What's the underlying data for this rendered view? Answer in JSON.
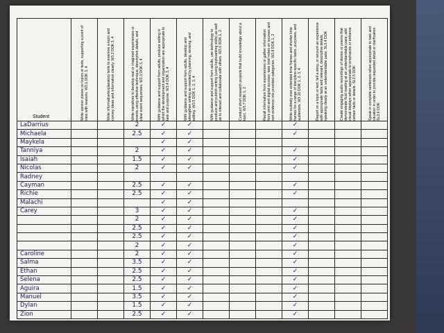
{
  "table": {
    "headers": [
      "Student",
      "Write opinion pieces on topics or texts, supporting a point of view with reasons. W3.1 DOK 3, 4",
      "Write informative/explanatory texts to examine a topic and convey ideas and information clearly. W3.2 DOK 3, 4",
      "Write narratives to develop real or imagined experiences or events using effective technique, descriptive details, and clear event sequences. W3.3 DOK 3, 4",
      "With guidance and support from adults, produce writing in which the development and organization are appropriate to task and purpose. W3.4 DOK 3, 4",
      "With guidance and support from adults, develop and strengthen writing as needed by planning, revising, and editing. W3.5 DOK 1, 2, 3, 4",
      "With guidance and support from adults, use technology to produce and publish writing (using keyboarding skills) as well as to interact and collaborate with others. W3.6 DOK 1, 2",
      "Conduct short research projects that build knowledge about a topic. W3.7 DOK 1, 2",
      "Recall information from experiences or gather information from print and digital sources; take brief notes on sources and sort evidence into provided categories. W3.8 DOK 1, 2",
      "Write routinely over extended time frames and shorter time frames for a range of discipline-specific tasks, purposes, and audiences. W3.10 DOK 1, 2, 3, 4",
      "Report on a topic or text, tell a story, or recount an experience with appropriate facts and relevant, descriptive details, speaking clearly at an understandable pace. SL3.4 DOK",
      "Create engaging audio recordings of stories or poems that demonstrate fluid reading at an understandable pace; add visual displays when appropriate to emphasize or enhance certain facts or details. SL3.5 DOK",
      "Speak in complete sentences when appropriate to task and situation in order to provide requested detail or clarification. SL3.6 DOK"
    ],
    "rows": [
      {
        "name": "LaDarrius",
        "cells": [
          null,
          null,
          2,
          "✓",
          "✓",
          null,
          null,
          null,
          "✓",
          null,
          null,
          null
        ]
      },
      {
        "name": "Michaela",
        "cells": [
          null,
          null,
          2.5,
          "✓",
          "✓",
          null,
          null,
          null,
          "✓",
          null,
          null,
          null
        ]
      },
      {
        "name": "Maykela",
        "cells": [
          null,
          null,
          null,
          "✓",
          "✓",
          null,
          null,
          null,
          null,
          null,
          null,
          null
        ]
      },
      {
        "name": "Tanniya",
        "cells": [
          null,
          null,
          2,
          "✓",
          "✓",
          null,
          null,
          null,
          "✓",
          null,
          null,
          null
        ]
      },
      {
        "name": "Isaiah",
        "cells": [
          null,
          null,
          1.5,
          "✓",
          "✓",
          null,
          null,
          null,
          "✓",
          null,
          null,
          null
        ]
      },
      {
        "name": "Nicolas",
        "cells": [
          null,
          null,
          2,
          "✓",
          "✓",
          null,
          null,
          null,
          "✓",
          null,
          null,
          null
        ]
      },
      {
        "name": "Radney",
        "cells": [
          null,
          null,
          null,
          null,
          null,
          null,
          null,
          null,
          null,
          null,
          null,
          null
        ]
      },
      {
        "name": "Cayman",
        "cells": [
          null,
          null,
          2.5,
          "✓",
          "✓",
          null,
          null,
          null,
          "✓",
          null,
          null,
          null
        ]
      },
      {
        "name": "Richie",
        "cells": [
          null,
          null,
          2.5,
          "✓",
          "✓",
          null,
          null,
          null,
          "✓",
          null,
          null,
          null
        ]
      },
      {
        "name": "Malachi",
        "cells": [
          null,
          null,
          null,
          "✓",
          "✓",
          null,
          null,
          null,
          null,
          null,
          null,
          null
        ]
      },
      {
        "name": "Carey",
        "cells": [
          null,
          null,
          3,
          "✓",
          "✓",
          null,
          null,
          null,
          "✓",
          null,
          null,
          null
        ]
      },
      {
        "cells": [
          null,
          null,
          2,
          "✓",
          "✓",
          null,
          null,
          null,
          "✓",
          null,
          null,
          null
        ]
      },
      {
        "cells": [
          null,
          null,
          2.5,
          "✓",
          "✓",
          null,
          null,
          null,
          "✓",
          null,
          null,
          null
        ]
      },
      {
        "cells": [
          null,
          null,
          2.5,
          "✓",
          "✓",
          null,
          null,
          null,
          "✓",
          null,
          null,
          null
        ]
      },
      {
        "cells": [
          null,
          null,
          2,
          "✓",
          "✓",
          null,
          null,
          null,
          "✓",
          null,
          null,
          null
        ]
      },
      {
        "name": "Caroline",
        "cells": [
          null,
          null,
          2,
          "✓",
          "✓",
          null,
          null,
          null,
          "✓",
          null,
          null,
          null
        ]
      },
      {
        "name": "Salma",
        "cells": [
          null,
          null,
          3.5,
          "✓",
          "✓",
          null,
          null,
          null,
          "✓",
          null,
          null,
          null
        ]
      },
      {
        "name": "Ethan",
        "cells": [
          null,
          null,
          2.5,
          "✓",
          "✓",
          null,
          null,
          null,
          "✓",
          null,
          null,
          null
        ]
      },
      {
        "name": "Selena",
        "cells": [
          null,
          null,
          2.5,
          "✓",
          "✓",
          null,
          null,
          null,
          "✓",
          null,
          null,
          null
        ]
      },
      {
        "name": "Aguira",
        "cells": [
          null,
          null,
          1.5,
          "✓",
          "✓",
          null,
          null,
          null,
          "✓",
          null,
          null,
          null
        ]
      },
      {
        "name": "Manuel",
        "cells": [
          null,
          null,
          3.5,
          "✓",
          "✓",
          null,
          null,
          null,
          "✓",
          null,
          null,
          null
        ]
      },
      {
        "name": "Dylan",
        "cells": [
          null,
          null,
          1.5,
          "✓",
          "✓",
          null,
          null,
          null,
          "✓",
          null,
          null,
          null
        ]
      },
      {
        "name": "Zion",
        "cells": [
          null,
          null,
          2.5,
          "✓",
          "✓",
          null,
          null,
          null,
          "✓",
          null,
          null,
          null
        ]
      }
    ]
  }
}
